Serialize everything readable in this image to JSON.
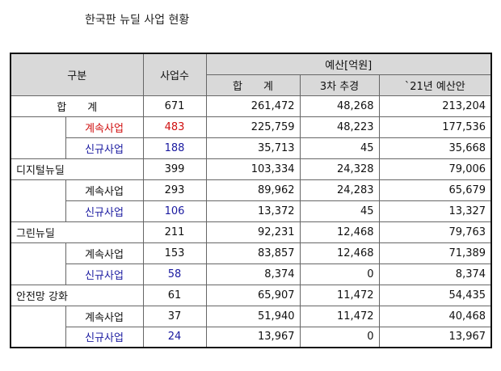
{
  "title": "한국판 뉴딜 사업 현황",
  "headers": {
    "category": "구분",
    "count": "사업수",
    "budget": "예산[억원]",
    "total": "합　　계",
    "supp3": "3차 추경",
    "budget21": "`21년 예산안"
  },
  "sections": [
    {
      "label": "합　　계",
      "count": "671",
      "total": "261,472",
      "supp3": "48,268",
      "budget21": "213,204",
      "sub": [
        {
          "label": "계속사업",
          "count": "483",
          "total": "225,759",
          "supp3": "48,223",
          "budget21": "177,536"
        },
        {
          "label": "신규사업",
          "count": "188",
          "total": "35,713",
          "supp3": "45",
          "budget21": "35,668"
        }
      ]
    },
    {
      "label": "디지털뉴딜",
      "count": "399",
      "total": "103,334",
      "supp3": "24,328",
      "budget21": "79,006",
      "sub": [
        {
          "label": "계속사업",
          "count": "293",
          "total": "89,962",
          "supp3": "24,283",
          "budget21": "65,679"
        },
        {
          "label": "신규사업",
          "count": "106",
          "total": "13,372",
          "supp3": "45",
          "budget21": "13,327"
        }
      ]
    },
    {
      "label": "그린뉴딜",
      "count": "211",
      "total": "92,231",
      "supp3": "12,468",
      "budget21": "79,763",
      "sub": [
        {
          "label": "계속사업",
          "count": "153",
          "total": "83,857",
          "supp3": "12,468",
          "budget21": "71,389"
        },
        {
          "label": "신규사업",
          "count": "58",
          "total": "8,374",
          "supp3": "0",
          "budget21": "8,374"
        }
      ]
    },
    {
      "label": "안전망 강화",
      "count": "61",
      "total": "65,907",
      "supp3": "11,472",
      "budget21": "54,435",
      "sub": [
        {
          "label": "계속사업",
          "count": "37",
          "total": "51,940",
          "supp3": "11,472",
          "budget21": "40,468"
        },
        {
          "label": "신규사업",
          "count": "24",
          "total": "13,967",
          "supp3": "0",
          "budget21": "13,967"
        }
      ]
    }
  ]
}
